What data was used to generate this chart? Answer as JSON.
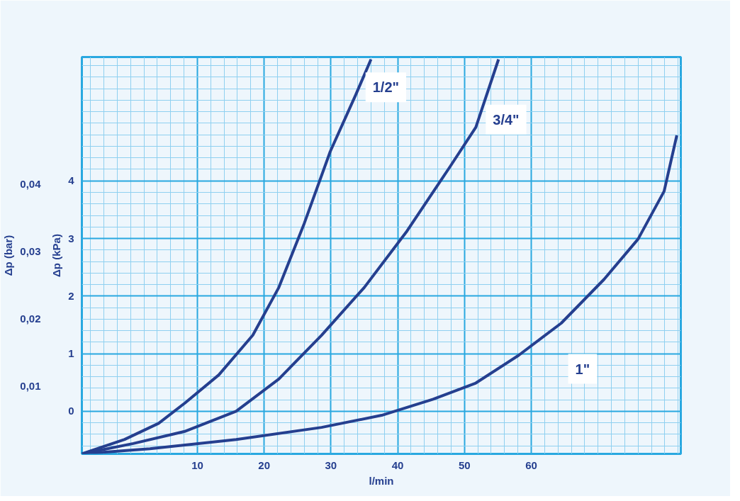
{
  "chart_data": {
    "type": "line",
    "xlabel": "l/min",
    "ylabel": "Δp (kPa)",
    "y2label": "Δp (bar)",
    "xlim": [
      -7.3,
      82.4
    ],
    "xticks": [
      10,
      20,
      30,
      40,
      50,
      60
    ],
    "ylim": [
      -0.74,
      6.15
    ],
    "yticks": [
      0,
      1,
      2,
      3,
      4
    ],
    "y2lim": [
      0,
      0.0588
    ],
    "y2ticks": [
      {
        "value": 0.01,
        "label": "0,01"
      },
      {
        "value": 0.02,
        "label": "0,02"
      },
      {
        "value": 0.03,
        "label": "0,03"
      },
      {
        "value": 0.04,
        "label": "0,04"
      }
    ],
    "grid": true,
    "legend": false,
    "line_style": "solid",
    "marker": "none",
    "series": [
      {
        "name": "1/2\"",
        "color": "#253f8f",
        "x": [
          -7.3,
          -0.9,
          4.2,
          8.1,
          13.2,
          18.3,
          22.2,
          26.0,
          29.9,
          33.7,
          36.0
        ],
        "values": [
          -0.74,
          -0.49,
          -0.21,
          0.14,
          0.63,
          1.32,
          2.15,
          3.26,
          4.51,
          5.49,
          6.11
        ]
      },
      {
        "name": "3/4\"",
        "color": "#253f8f",
        "x": [
          -7.3,
          0.4,
          8.1,
          15.8,
          22.2,
          28.6,
          35.0,
          41.4,
          47.8,
          51.7,
          55.1
        ],
        "values": [
          -0.74,
          -0.56,
          -0.35,
          0,
          0.56,
          1.32,
          2.15,
          3.13,
          4.24,
          4.93,
          6.11
        ]
      },
      {
        "name": "1\"",
        "color": "#253f8f",
        "x": [
          -7.3,
          2.9,
          15.8,
          28.6,
          37.6,
          45.3,
          51.7,
          58.1,
          64.5,
          70.9,
          76.0,
          79.9,
          81.8
        ],
        "values": [
          -0.74,
          -0.65,
          -0.49,
          -0.28,
          -0.07,
          0.21,
          0.49,
          0.97,
          1.53,
          2.29,
          2.99,
          3.82,
          4.79
        ]
      }
    ]
  }
}
